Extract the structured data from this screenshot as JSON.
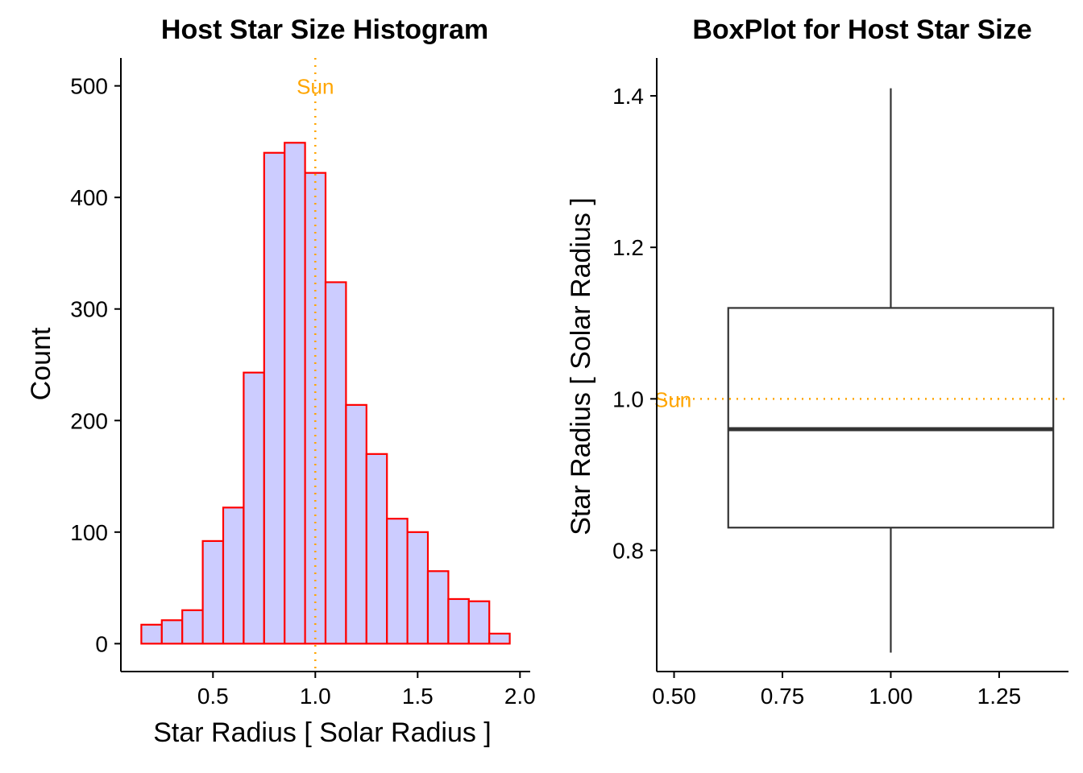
{
  "chart_data": [
    {
      "type": "bar",
      "title": "Host Star Size Histogram",
      "xlabel": "Star  Radius  [ Solar Radius ]",
      "ylabel": "Count",
      "xlim": [
        0.05,
        2.05
      ],
      "ylim": [
        -25,
        525
      ],
      "xticks": [
        {
          "v": 0.5,
          "label": "0.5"
        },
        {
          "v": 1.0,
          "label": "1.0"
        },
        {
          "v": 1.5,
          "label": "1.5"
        },
        {
          "v": 2.0,
          "label": "2.0"
        }
      ],
      "yticks": [
        {
          "v": 0,
          "label": "0"
        },
        {
          "v": 100,
          "label": "100"
        },
        {
          "v": 200,
          "label": "200"
        },
        {
          "v": 300,
          "label": "300"
        },
        {
          "v": 400,
          "label": "400"
        },
        {
          "v": 500,
          "label": "500"
        }
      ],
      "bin_width": 0.1,
      "bin_centers": [
        0.2,
        0.3,
        0.4,
        0.5,
        0.6,
        0.7,
        0.8,
        0.9,
        1.0,
        1.1,
        1.2,
        1.3,
        1.4,
        1.5,
        1.6,
        1.7,
        1.8,
        1.9
      ],
      "values": [
        17,
        21,
        30,
        92,
        122,
        243,
        440,
        449,
        422,
        324,
        214,
        170,
        112,
        100,
        65,
        40,
        38,
        9
      ],
      "bar_fill": "#ccccff",
      "bar_stroke": "#ff0000",
      "reference_line": {
        "value": 1.0,
        "label": "Sun",
        "color": "#ffa500"
      },
      "grid": false,
      "legend": "none"
    },
    {
      "type": "boxplot",
      "title": "BoxPlot for Host Star Size",
      "xlabel": "",
      "ylabel": "Star  Radius  [ Solar Radius ]",
      "xlim": [
        0.46,
        1.41
      ],
      "ylim": [
        0.64,
        1.45
      ],
      "xticks": [
        {
          "v": 0.5,
          "label": "0.50"
        },
        {
          "v": 0.75,
          "label": "0.75"
        },
        {
          "v": 1.0,
          "label": "1.00"
        },
        {
          "v": 1.25,
          "label": "1.25"
        }
      ],
      "yticks": [
        {
          "v": 0.8,
          "label": "0.8"
        },
        {
          "v": 1.0,
          "label": "1.0"
        },
        {
          "v": 1.2,
          "label": "1.2"
        },
        {
          "v": 1.4,
          "label": "1.4"
        }
      ],
      "box": {
        "x": 1.0,
        "width": 0.75,
        "whisker_low": 0.665,
        "q1": 0.83,
        "median": 0.96,
        "q3": 1.12,
        "whisker_high": 1.41
      },
      "box_color": "#333333",
      "reference_line": {
        "value": 1.0,
        "label": "Sun",
        "color": "#ffa500"
      },
      "grid": false,
      "legend": "none"
    }
  ]
}
